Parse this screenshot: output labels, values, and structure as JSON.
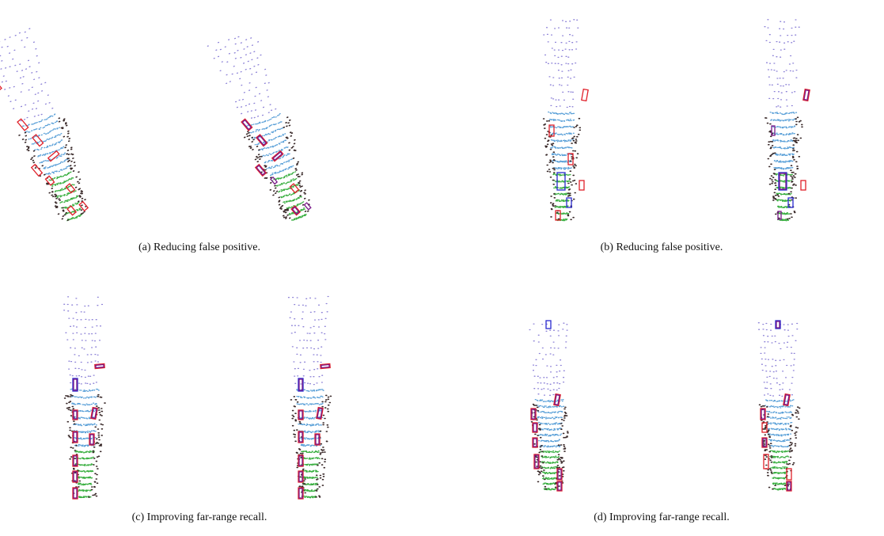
{
  "figure": {
    "panels": [
      {
        "caption": "(a) Reducing false positive."
      },
      {
        "caption": "(b) Reducing false positive."
      },
      {
        "caption": "(c) Improving far-range recall."
      },
      {
        "caption": "(d) Improving far-range recall."
      }
    ]
  }
}
